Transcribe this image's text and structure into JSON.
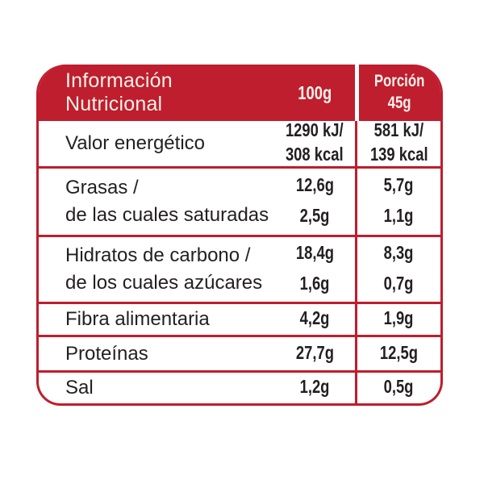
{
  "colors": {
    "red": "#BE1E2D",
    "header_text": "#F8F1EA",
    "body_text": "#231F20"
  },
  "header": {
    "title": "Información Nutricional",
    "per_100g": "100g",
    "portion_label": "Porción",
    "portion_amount": "45g"
  },
  "rows": [
    {
      "labels": [
        "Valor energético"
      ],
      "per_100g": [
        "1290 kJ/",
        "308 kcal"
      ],
      "portion": [
        "581 kJ/",
        "139 kcal"
      ]
    },
    {
      "labels": [
        "Grasas /",
        "de las cuales saturadas"
      ],
      "per_100g": [
        "12,6g",
        "2,5g"
      ],
      "portion": [
        "5,7g",
        "1,1g"
      ]
    },
    {
      "labels": [
        "Hidratos de carbono /",
        "de los cuales azúcares"
      ],
      "per_100g": [
        "18,4g",
        "1,6g"
      ],
      "portion": [
        "8,3g",
        "0,7g"
      ]
    },
    {
      "labels": [
        "Fibra alimentaria"
      ],
      "per_100g": [
        "4,2g"
      ],
      "portion": [
        "1,9g"
      ]
    },
    {
      "labels": [
        "Proteínas"
      ],
      "per_100g": [
        "27,7g"
      ],
      "portion": [
        "12,5g"
      ]
    },
    {
      "labels": [
        "Sal"
      ],
      "per_100g": [
        "1,2g"
      ],
      "portion": [
        "0,5g"
      ]
    }
  ]
}
